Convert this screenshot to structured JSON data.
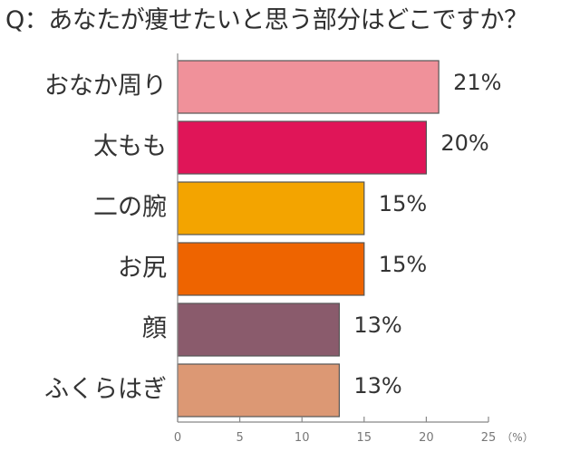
{
  "chart_data": {
    "type": "bar",
    "orientation": "horizontal",
    "title": "Q：あなたが痩せたいと思う部分はどこですか？",
    "categories": [
      "おなか周り",
      "太もも",
      "二の腕",
      "お尻",
      "顔",
      "ふくらはぎ"
    ],
    "values": [
      21,
      20,
      15,
      15,
      13,
      13
    ],
    "value_labels": [
      "21%",
      "20%",
      "15%",
      "15%",
      "13%",
      "13%"
    ],
    "colors": [
      "#f0919a",
      "#e01558",
      "#f3a400",
      "#ee6400",
      "#8a5b6c",
      "#dc9874"
    ],
    "xlim": [
      0,
      25
    ],
    "x_ticks": [
      0,
      5,
      10,
      15,
      20,
      25
    ],
    "x_unit": "（%）",
    "grid": false
  }
}
